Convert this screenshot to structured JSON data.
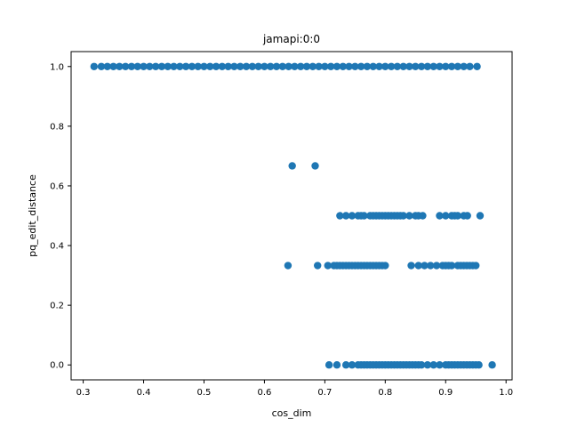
{
  "chart_data": {
    "type": "scatter",
    "title": "jamapi:0:0",
    "xlabel": "cos_dim",
    "ylabel": "pq_edit_distance",
    "xlim": [
      0.28,
      1.01
    ],
    "ylim": [
      -0.05,
      1.05
    ],
    "xticks": [
      0.3,
      0.4,
      0.5,
      0.6,
      0.7,
      0.8,
      0.9,
      1.0
    ],
    "xtick_labels": [
      "0.3",
      "0.4",
      "0.5",
      "0.6",
      "0.7",
      "0.8",
      "0.9",
      "1.0"
    ],
    "yticks": [
      0.0,
      0.2,
      0.4,
      0.6,
      0.8,
      1.0
    ],
    "ytick_labels": [
      "0.0",
      "0.2",
      "0.4",
      "0.6",
      "0.8",
      "1.0"
    ],
    "grid": false,
    "marker_color": "#1f77b4",
    "x": [
      0.318,
      0.33,
      0.34,
      0.35,
      0.36,
      0.37,
      0.38,
      0.39,
      0.4,
      0.41,
      0.42,
      0.43,
      0.44,
      0.45,
      0.46,
      0.47,
      0.48,
      0.49,
      0.5,
      0.51,
      0.52,
      0.53,
      0.54,
      0.55,
      0.56,
      0.57,
      0.58,
      0.59,
      0.6,
      0.61,
      0.62,
      0.63,
      0.64,
      0.65,
      0.66,
      0.67,
      0.68,
      0.69,
      0.7,
      0.71,
      0.72,
      0.73,
      0.74,
      0.75,
      0.76,
      0.77,
      0.78,
      0.79,
      0.8,
      0.81,
      0.82,
      0.83,
      0.84,
      0.85,
      0.86,
      0.87,
      0.88,
      0.89,
      0.9,
      0.91,
      0.92,
      0.93,
      0.94,
      0.952,
      0.646,
      0.684,
      0.725,
      0.735,
      0.745,
      0.755,
      0.76,
      0.765,
      0.775,
      0.78,
      0.785,
      0.79,
      0.795,
      0.8,
      0.805,
      0.81,
      0.815,
      0.82,
      0.825,
      0.83,
      0.84,
      0.85,
      0.855,
      0.862,
      0.89,
      0.9,
      0.91,
      0.915,
      0.92,
      0.93,
      0.936,
      0.957,
      0.639,
      0.688,
      0.705,
      0.715,
      0.72,
      0.725,
      0.73,
      0.735,
      0.74,
      0.745,
      0.75,
      0.755,
      0.76,
      0.765,
      0.77,
      0.775,
      0.78,
      0.785,
      0.79,
      0.795,
      0.8,
      0.843,
      0.855,
      0.865,
      0.875,
      0.885,
      0.895,
      0.9,
      0.905,
      0.91,
      0.92,
      0.925,
      0.93,
      0.935,
      0.94,
      0.945,
      0.95,
      0.707,
      0.72,
      0.735,
      0.745,
      0.755,
      0.76,
      0.765,
      0.77,
      0.775,
      0.78,
      0.785,
      0.79,
      0.795,
      0.8,
      0.805,
      0.81,
      0.815,
      0.82,
      0.825,
      0.83,
      0.835,
      0.84,
      0.845,
      0.85,
      0.855,
      0.86,
      0.87,
      0.88,
      0.89,
      0.9,
      0.905,
      0.91,
      0.915,
      0.92,
      0.925,
      0.93,
      0.935,
      0.94,
      0.945,
      0.95,
      0.955,
      0.977
    ],
    "y": [
      1.0,
      1.0,
      1.0,
      1.0,
      1.0,
      1.0,
      1.0,
      1.0,
      1.0,
      1.0,
      1.0,
      1.0,
      1.0,
      1.0,
      1.0,
      1.0,
      1.0,
      1.0,
      1.0,
      1.0,
      1.0,
      1.0,
      1.0,
      1.0,
      1.0,
      1.0,
      1.0,
      1.0,
      1.0,
      1.0,
      1.0,
      1.0,
      1.0,
      1.0,
      1.0,
      1.0,
      1.0,
      1.0,
      1.0,
      1.0,
      1.0,
      1.0,
      1.0,
      1.0,
      1.0,
      1.0,
      1.0,
      1.0,
      1.0,
      1.0,
      1.0,
      1.0,
      1.0,
      1.0,
      1.0,
      1.0,
      1.0,
      1.0,
      1.0,
      1.0,
      1.0,
      1.0,
      1.0,
      1.0,
      0.667,
      0.667,
      0.5,
      0.5,
      0.5,
      0.5,
      0.5,
      0.5,
      0.5,
      0.5,
      0.5,
      0.5,
      0.5,
      0.5,
      0.5,
      0.5,
      0.5,
      0.5,
      0.5,
      0.5,
      0.5,
      0.5,
      0.5,
      0.5,
      0.5,
      0.5,
      0.5,
      0.5,
      0.5,
      0.5,
      0.5,
      0.5,
      0.333,
      0.333,
      0.333,
      0.333,
      0.333,
      0.333,
      0.333,
      0.333,
      0.333,
      0.333,
      0.333,
      0.333,
      0.333,
      0.333,
      0.333,
      0.333,
      0.333,
      0.333,
      0.333,
      0.333,
      0.333,
      0.333,
      0.333,
      0.333,
      0.333,
      0.333,
      0.333,
      0.333,
      0.333,
      0.333,
      0.333,
      0.333,
      0.333,
      0.333,
      0.333,
      0.333,
      0.333,
      0.0,
      0.0,
      0.0,
      0.0,
      0.0,
      0.0,
      0.0,
      0.0,
      0.0,
      0.0,
      0.0,
      0.0,
      0.0,
      0.0,
      0.0,
      0.0,
      0.0,
      0.0,
      0.0,
      0.0,
      0.0,
      0.0,
      0.0,
      0.0,
      0.0,
      0.0,
      0.0,
      0.0,
      0.0,
      0.0,
      0.0,
      0.0,
      0.0,
      0.0,
      0.0,
      0.0,
      0.0,
      0.0,
      0.0,
      0.0,
      0.0,
      0.0
    ]
  }
}
